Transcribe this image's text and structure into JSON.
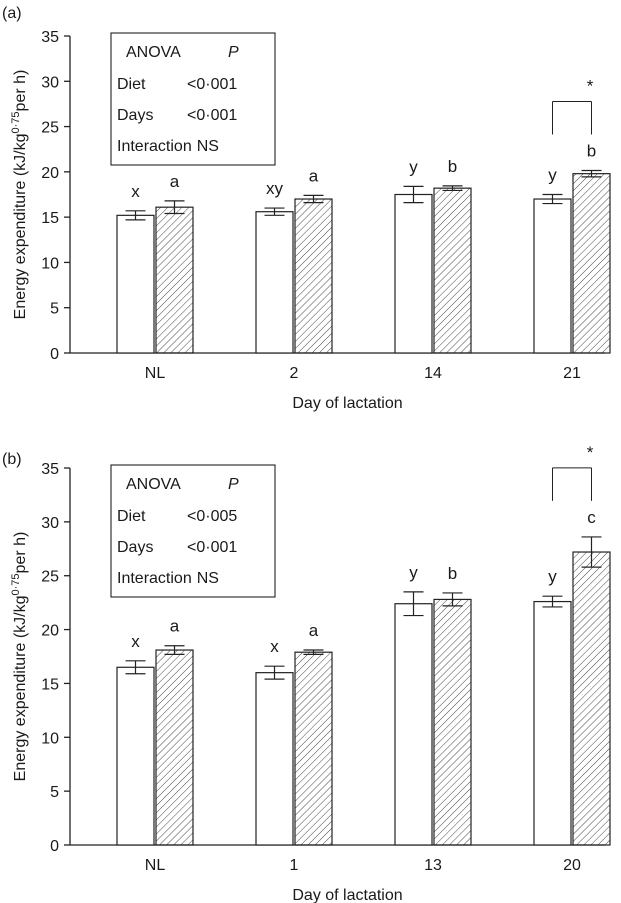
{
  "chart_data": [
    {
      "type": "bar",
      "panel_label": "(a)",
      "categories": [
        "NL",
        "2",
        "14",
        "21"
      ],
      "xlabel": "Day of lactation",
      "ylabel_main": "Energy expenditure (kJ/kg",
      "ylabel_sup": "0·75",
      "ylabel_tail": "per h)",
      "ylim": [
        0,
        35
      ],
      "yticks": [
        "0",
        "5",
        "10",
        "15",
        "20",
        "25",
        "30",
        "35"
      ],
      "series": [
        {
          "fill": "open",
          "values": [
            15.2,
            15.6,
            17.5,
            17.0
          ],
          "errors": [
            0.5,
            0.4,
            0.9,
            0.5
          ],
          "letters": [
            "x",
            "xy",
            "y",
            "y"
          ]
        },
        {
          "fill": "hatched",
          "values": [
            16.1,
            17.0,
            18.2,
            19.8
          ],
          "errors": [
            0.7,
            0.4,
            0.25,
            0.35
          ],
          "letters": [
            "a",
            "a",
            "b",
            "b"
          ]
        }
      ],
      "significance": [
        {
          "category": "21",
          "label": "*"
        }
      ],
      "anova": {
        "header": "ANOVA",
        "p_label": "P",
        "rows": [
          {
            "term": "Diet",
            "value": "<0·001"
          },
          {
            "term": "Days",
            "value": "<0·001"
          },
          {
            "term": "Interaction",
            "value": "NS"
          }
        ]
      }
    },
    {
      "type": "bar",
      "panel_label": "(b)",
      "categories": [
        "NL",
        "1",
        "13",
        "20"
      ],
      "xlabel": "Day of lactation",
      "ylabel_main": "Energy expenditure (kJ/kg",
      "ylabel_sup": "0·75",
      "ylabel_tail": "per h)",
      "ylim": [
        0,
        35
      ],
      "yticks": [
        "0",
        "5",
        "10",
        "15",
        "20",
        "25",
        "30",
        "35"
      ],
      "series": [
        {
          "fill": "open",
          "values": [
            16.5,
            16.0,
            22.4,
            22.6
          ],
          "errors": [
            0.6,
            0.6,
            1.1,
            0.5
          ],
          "letters": [
            "x",
            "x",
            "y",
            "y"
          ]
        },
        {
          "fill": "hatched",
          "values": [
            18.1,
            17.9,
            22.8,
            27.2
          ],
          "errors": [
            0.4,
            0.2,
            0.6,
            1.4
          ],
          "letters": [
            "a",
            "a",
            "b",
            "c"
          ]
        }
      ],
      "significance": [
        {
          "category": "20",
          "label": "*"
        }
      ],
      "anova": {
        "header": "ANOVA",
        "p_label": "P",
        "rows": [
          {
            "term": "Diet",
            "value": "<0·005"
          },
          {
            "term": "Days",
            "value": "<0·001"
          },
          {
            "term": "Interaction",
            "value": "NS"
          }
        ]
      }
    }
  ]
}
